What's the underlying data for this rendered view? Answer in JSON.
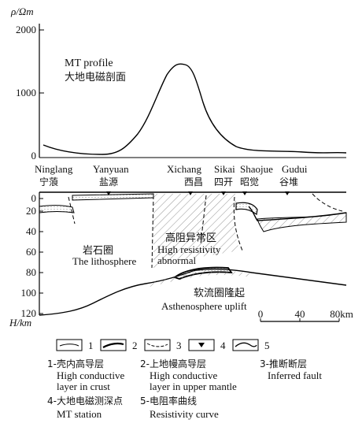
{
  "profile_plot": {
    "y_axis_label": "ρ/Ωm",
    "y_ticks": [
      "2000",
      "1000",
      "0"
    ],
    "title_en": "MT profile",
    "title_cn": "大地电磁剖面"
  },
  "stations": [
    {
      "en": "Ninglang",
      "cn": "宁蒗"
    },
    {
      "en": "Yanyuan",
      "cn": "盐源"
    },
    {
      "en": "Xichang",
      "cn": "西昌"
    },
    {
      "en": "Sikai",
      "cn": "四开"
    },
    {
      "en": "Shaojue",
      "cn": "昭觉"
    },
    {
      "en": "Gudui",
      "cn": "谷堆"
    }
  ],
  "section": {
    "depth_ticks": [
      "0",
      "20",
      "40",
      "60",
      "80",
      "100",
      "120"
    ],
    "depth_axis_label": "H/km",
    "lithosphere_cn": "岩石圈",
    "lithosphere_en": "The lithosphere",
    "anomaly_cn": "高阻异常区",
    "anomaly_en_1": "High resistivity",
    "anomaly_en_2": "abnormal",
    "uplift_cn": "软流圈隆起",
    "uplift_en": "Asthenosphere uplift",
    "scale_labels": [
      "0",
      "40",
      "80km"
    ]
  },
  "legend": {
    "numbers": [
      "1",
      "2",
      "3",
      "4",
      "5"
    ],
    "item1": {
      "cn": "1-壳内高导层",
      "en1": "High conductive",
      "en2": "layer in crust"
    },
    "item2": {
      "cn": "2-上地幔高导层",
      "en1": "High conductive",
      "en2": "layer in upper mantle"
    },
    "item3": {
      "cn": "3-推断断层",
      "en1": "Inferred fault"
    },
    "item4": {
      "cn": "4-大地电磁测深点",
      "en1": "MT station"
    },
    "item5": {
      "cn": "5-电阻率曲线",
      "en1": "Resistivity curve"
    }
  }
}
